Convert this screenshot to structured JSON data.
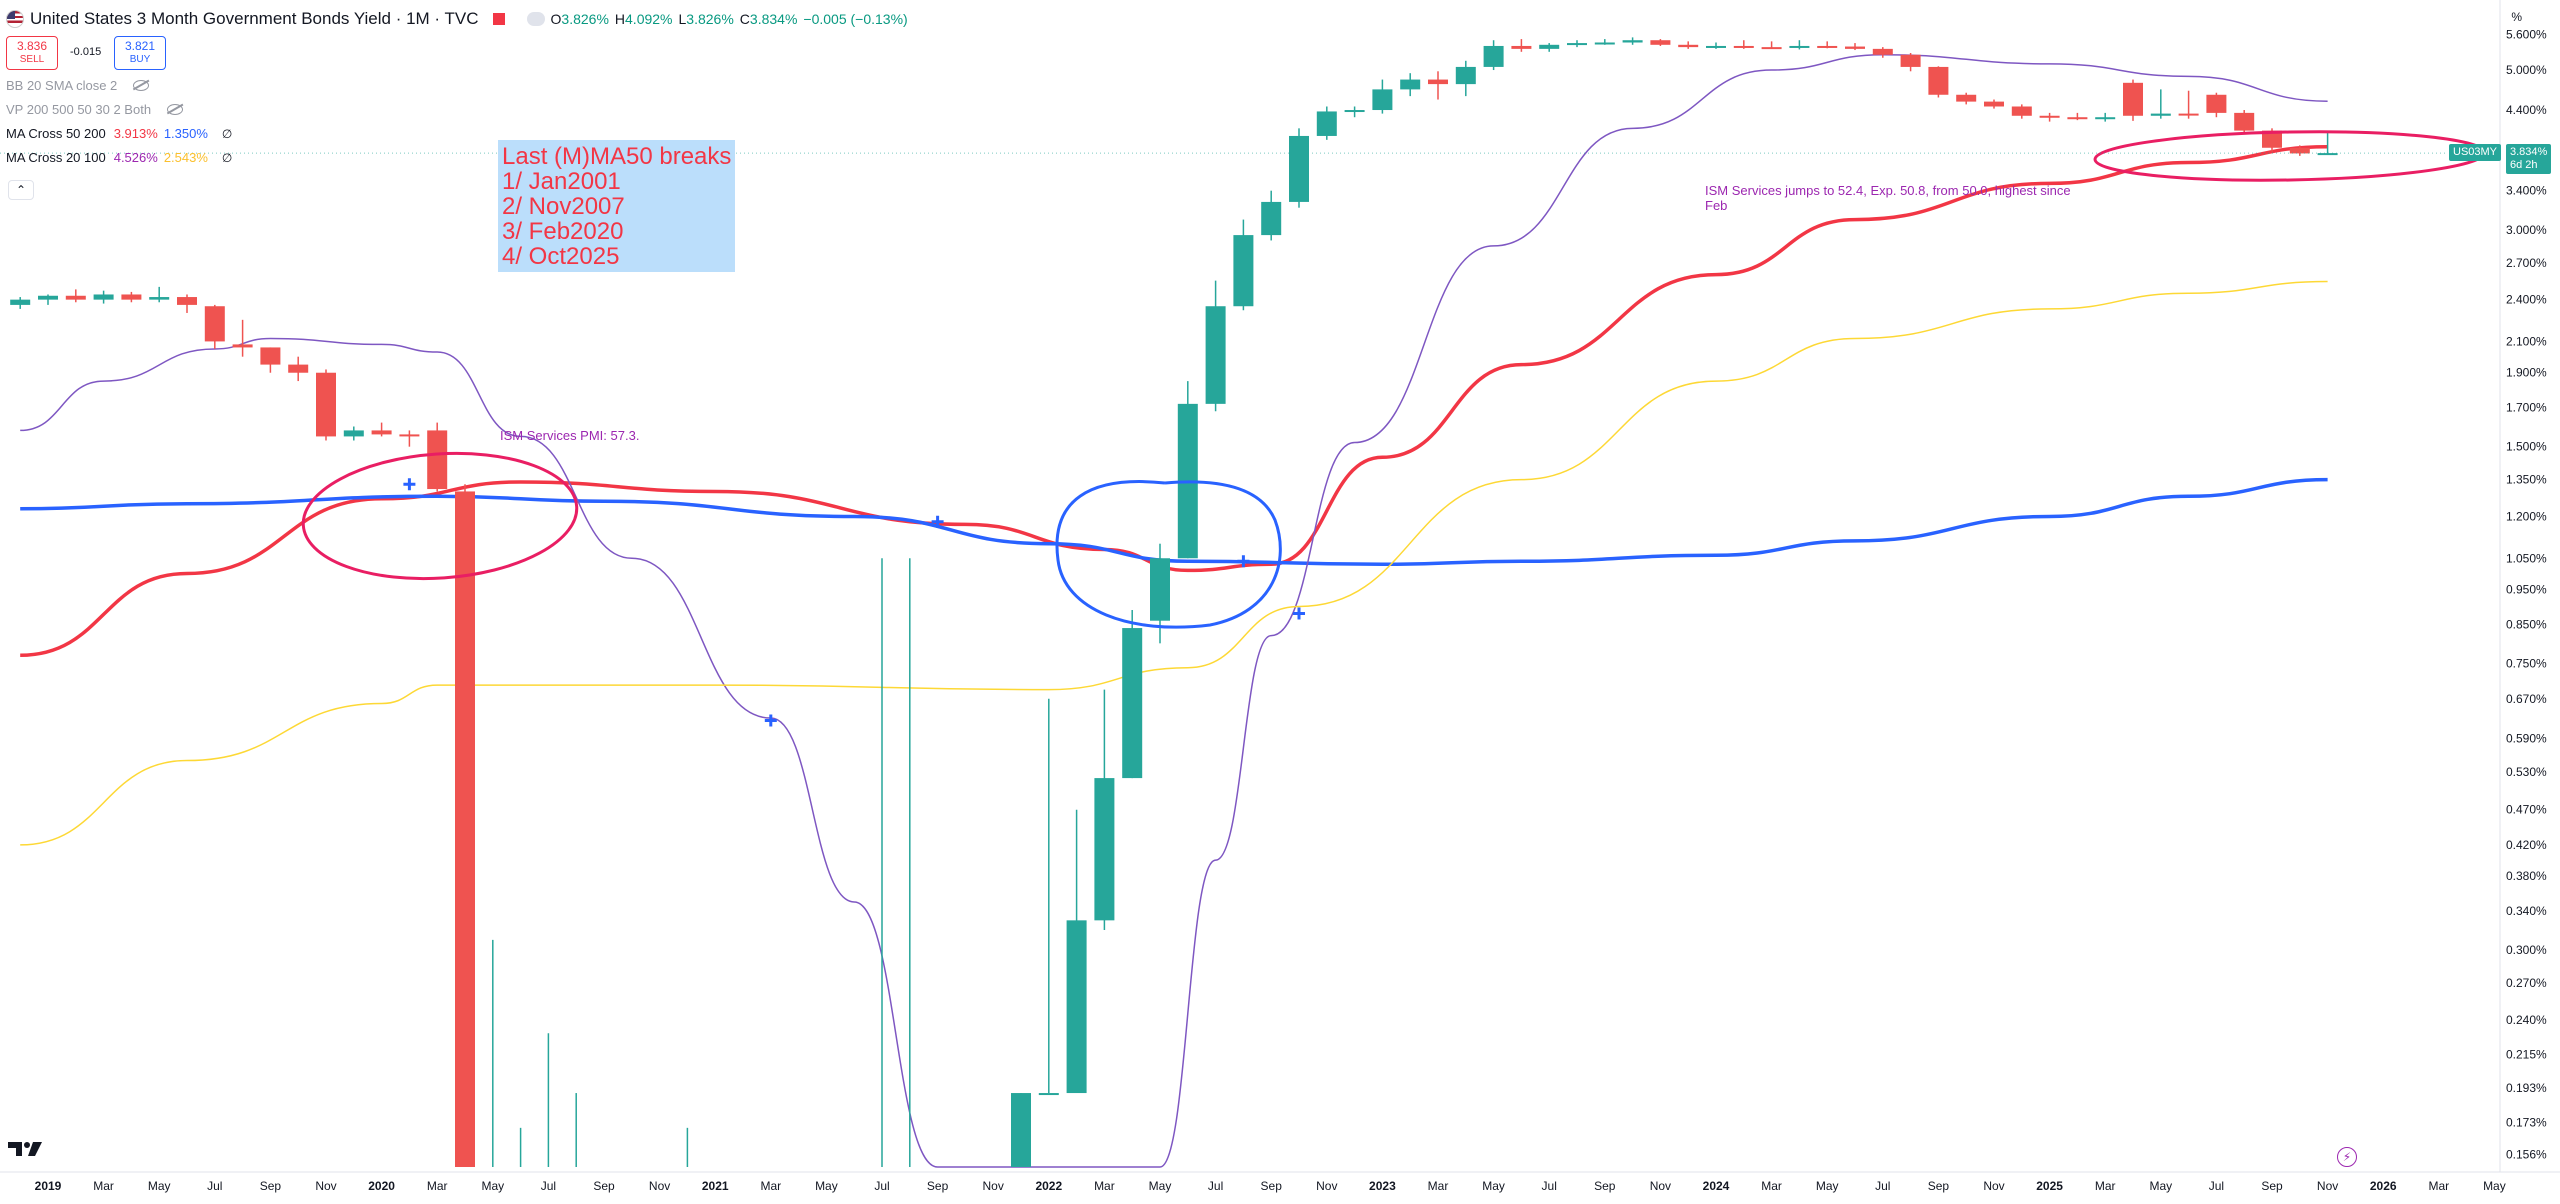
{
  "header": {
    "title": "United States 3 Month Government Bonds Yield · 1M · TVC",
    "ohlc": [
      {
        "k": "O",
        "v": "3.826%"
      },
      {
        "k": "H",
        "v": "4.092%"
      },
      {
        "k": "L",
        "v": "3.826%"
      },
      {
        "k": "C",
        "v": "3.834%"
      },
      {
        "k": "",
        "v": "−0.005 (−0.13%)"
      }
    ]
  },
  "trade": {
    "sell_price": "3.836",
    "sell_label": "SELL",
    "spread": "-0.015",
    "buy_price": "3.821",
    "buy_label": "BUY"
  },
  "indicators": [
    {
      "name": "BB 20 SMA close 2",
      "dim": true,
      "values": [],
      "hidden": true
    },
    {
      "name": "VP 200 500 50 30 2 Both",
      "dim": true,
      "values": [],
      "hidden": true
    },
    {
      "name": "MA Cross 50 200",
      "dim": false,
      "values": [
        {
          "v": "3.913%",
          "color": "#f23645"
        },
        {
          "v": "1.350%",
          "color": "#2962ff"
        }
      ],
      "null": "∅"
    },
    {
      "name": "MA Cross 20 100",
      "dim": false,
      "values": [
        {
          "v": "4.526%",
          "color": "#9c27b0"
        },
        {
          "v": "2.543%",
          "color": "#fbc02d"
        }
      ],
      "null": "∅"
    }
  ],
  "collapse_label": "⌃",
  "note": {
    "lines": [
      "Last (M)MA50 breaks",
      "1/ Jan2001",
      "2/ Nov2007",
      "3/ Feb2020",
      "4/ Oct2025"
    ]
  },
  "annotations": {
    "ism_2020": "ISM Services PMI: 57.3.",
    "ism_2025_line1": "ISM Services jumps to 52.4, Exp. 50.8, from 50.0, highest since",
    "ism_2025_line2": "Feb"
  },
  "axis_unit": "%",
  "symbol_tag": "US03MY",
  "last_price": "3.834%",
  "countdown": "6d 2h",
  "colors": {
    "up": "#26a69a",
    "down": "#ef5350",
    "ma50": "#f23645",
    "ma200": "#2962ff",
    "ma20": "#7e57c2",
    "ma100": "#fdd835",
    "markup_red": "#e91e63",
    "markup_blue": "#2962ff"
  },
  "chart_data": {
    "type": "candlestick",
    "title": "United States 3 Month Government Bonds Yield · 1M · TVC",
    "y_scale": "log",
    "ylim": [
      0.15,
      6.0
    ],
    "y_ticks": [
      "0.156%",
      "0.173%",
      "0.193%",
      "0.215%",
      "0.240%",
      "0.270%",
      "0.300%",
      "0.340%",
      "0.380%",
      "0.420%",
      "0.470%",
      "0.530%",
      "0.590%",
      "0.670%",
      "0.750%",
      "0.850%",
      "0.950%",
      "1.050%",
      "1.200%",
      "1.350%",
      "1.500%",
      "1.700%",
      "1.900%",
      "2.100%",
      "2.400%",
      "2.700%",
      "3.000%",
      "3.400%",
      "3.800%",
      "4.400%",
      "5.000%",
      "5.600%"
    ],
    "x_ticks": [
      "2019",
      "Mar",
      "May",
      "Jul",
      "Sep",
      "Nov",
      "2020",
      "Mar",
      "May",
      "Jul",
      "Sep",
      "Nov",
      "2021",
      "Mar",
      "May",
      "Jul",
      "Sep",
      "Nov",
      "2022",
      "Mar",
      "May",
      "Jul",
      "Sep",
      "Nov",
      "2023",
      "Mar",
      "May",
      "Jul",
      "Sep",
      "Nov",
      "2024",
      "Mar",
      "May",
      "Jul",
      "Sep",
      "Nov",
      "2025",
      "Mar",
      "May",
      "Jul",
      "Sep",
      "Nov",
      "2026",
      "Mar",
      "May"
    ],
    "candles": [
      {
        "t": "2018-12",
        "o": 2.36,
        "h": 2.42,
        "l": 2.33,
        "c": 2.4
      },
      {
        "t": "2019-01",
        "o": 2.4,
        "h": 2.44,
        "l": 2.36,
        "c": 2.43
      },
      {
        "t": "2019-02",
        "o": 2.43,
        "h": 2.48,
        "l": 2.38,
        "c": 2.4
      },
      {
        "t": "2019-03",
        "o": 2.4,
        "h": 2.47,
        "l": 2.37,
        "c": 2.44
      },
      {
        "t": "2019-04",
        "o": 2.44,
        "h": 2.46,
        "l": 2.38,
        "c": 2.4
      },
      {
        "t": "2019-05",
        "o": 2.4,
        "h": 2.5,
        "l": 2.38,
        "c": 2.42
      },
      {
        "t": "2019-06",
        "o": 2.42,
        "h": 2.44,
        "l": 2.3,
        "c": 2.36
      },
      {
        "t": "2019-07",
        "o": 2.35,
        "h": 2.36,
        "l": 2.05,
        "c": 2.1
      },
      {
        "t": "2019-08",
        "o": 2.08,
        "h": 2.25,
        "l": 2.0,
        "c": 2.06
      },
      {
        "t": "2019-09",
        "o": 2.06,
        "h": 2.06,
        "l": 1.9,
        "c": 1.95
      },
      {
        "t": "2019-10",
        "o": 1.95,
        "h": 2.0,
        "l": 1.85,
        "c": 1.9
      },
      {
        "t": "2019-11",
        "o": 1.9,
        "h": 1.92,
        "l": 1.53,
        "c": 1.55
      },
      {
        "t": "2019-12",
        "o": 1.55,
        "h": 1.6,
        "l": 1.53,
        "c": 1.58
      },
      {
        "t": "2020-01",
        "o": 1.58,
        "h": 1.62,
        "l": 1.55,
        "c": 1.56
      },
      {
        "t": "2020-02",
        "o": 1.56,
        "h": 1.58,
        "l": 1.5,
        "c": 1.55
      },
      {
        "t": "2020-03",
        "o": 1.58,
        "h": 1.62,
        "l": 1.3,
        "c": 1.31
      },
      {
        "t": "2020-04",
        "o": 1.3,
        "h": 1.33,
        "l": 0.15,
        "c": 0.15
      },
      {
        "t": "2020-05",
        "o": 0.15,
        "h": 0.31,
        "l": 0.15,
        "c": 0.15
      },
      {
        "t": "2020-06",
        "o": 0.15,
        "h": 0.17,
        "l": 0.15,
        "c": 0.15
      },
      {
        "t": "2020-07",
        "o": 0.15,
        "h": 0.23,
        "l": 0.15,
        "c": 0.15
      },
      {
        "t": "2020-08",
        "o": 0.15,
        "h": 0.19,
        "l": 0.15,
        "c": 0.15
      },
      {
        "t": "2020-12",
        "o": 0.15,
        "h": 0.17,
        "l": 0.15,
        "c": 0.15
      },
      {
        "t": "2021-07",
        "o": 0.15,
        "h": 1.05,
        "l": 0.15,
        "c": 0.15
      },
      {
        "t": "2021-08",
        "o": 0.15,
        "h": 1.05,
        "l": 0.15,
        "c": 0.15
      },
      {
        "t": "2021-12",
        "o": 0.15,
        "h": 0.19,
        "l": 0.15,
        "c": 0.19
      },
      {
        "t": "2022-01",
        "o": 0.19,
        "h": 0.67,
        "l": 0.19,
        "c": 0.19
      },
      {
        "t": "2022-02",
        "o": 0.19,
        "h": 0.47,
        "l": 0.19,
        "c": 0.33
      },
      {
        "t": "2022-03",
        "o": 0.33,
        "h": 0.69,
        "l": 0.32,
        "c": 0.52
      },
      {
        "t": "2022-04",
        "o": 0.52,
        "h": 0.89,
        "l": 0.52,
        "c": 0.84
      },
      {
        "t": "2022-05",
        "o": 0.86,
        "h": 1.1,
        "l": 0.8,
        "c": 1.05
      },
      {
        "t": "2022-06",
        "o": 1.05,
        "h": 1.85,
        "l": 1.05,
        "c": 1.72
      },
      {
        "t": "2022-07",
        "o": 1.72,
        "h": 2.55,
        "l": 1.68,
        "c": 2.35
      },
      {
        "t": "2022-08",
        "o": 2.35,
        "h": 3.1,
        "l": 2.32,
        "c": 2.95
      },
      {
        "t": "2022-09",
        "o": 2.95,
        "h": 3.4,
        "l": 2.9,
        "c": 3.28
      },
      {
        "t": "2022-10",
        "o": 3.28,
        "h": 4.15,
        "l": 3.22,
        "c": 4.05
      },
      {
        "t": "2022-11",
        "o": 4.05,
        "h": 4.45,
        "l": 4.0,
        "c": 4.38
      },
      {
        "t": "2022-12",
        "o": 4.38,
        "h": 4.45,
        "l": 4.3,
        "c": 4.4
      },
      {
        "t": "2023-01",
        "o": 4.4,
        "h": 4.85,
        "l": 4.35,
        "c": 4.7
      },
      {
        "t": "2023-02",
        "o": 4.7,
        "h": 4.95,
        "l": 4.6,
        "c": 4.85
      },
      {
        "t": "2023-03",
        "o": 4.85,
        "h": 4.98,
        "l": 4.55,
        "c": 4.78
      },
      {
        "t": "2023-04",
        "o": 4.78,
        "h": 5.15,
        "l": 4.6,
        "c": 5.05
      },
      {
        "t": "2023-05",
        "o": 5.05,
        "h": 5.5,
        "l": 5.0,
        "c": 5.4
      },
      {
        "t": "2023-06",
        "o": 5.4,
        "h": 5.52,
        "l": 5.3,
        "c": 5.35
      },
      {
        "t": "2023-07",
        "o": 5.35,
        "h": 5.45,
        "l": 5.3,
        "c": 5.42
      },
      {
        "t": "2023-08",
        "o": 5.42,
        "h": 5.5,
        "l": 5.38,
        "c": 5.45
      },
      {
        "t": "2023-09",
        "o": 5.45,
        "h": 5.52,
        "l": 5.42,
        "c": 5.46
      },
      {
        "t": "2023-10",
        "o": 5.46,
        "h": 5.55,
        "l": 5.42,
        "c": 5.5
      },
      {
        "t": "2023-11",
        "o": 5.5,
        "h": 5.52,
        "l": 5.4,
        "c": 5.42
      },
      {
        "t": "2023-12",
        "o": 5.42,
        "h": 5.48,
        "l": 5.35,
        "c": 5.38
      },
      {
        "t": "2024-01",
        "o": 5.38,
        "h": 5.46,
        "l": 5.35,
        "c": 5.4
      },
      {
        "t": "2024-02",
        "o": 5.4,
        "h": 5.5,
        "l": 5.35,
        "c": 5.38
      },
      {
        "t": "2024-03",
        "o": 5.38,
        "h": 5.48,
        "l": 5.35,
        "c": 5.37
      },
      {
        "t": "2024-04",
        "o": 5.37,
        "h": 5.5,
        "l": 5.34,
        "c": 5.4
      },
      {
        "t": "2024-05",
        "o": 5.4,
        "h": 5.48,
        "l": 5.36,
        "c": 5.39
      },
      {
        "t": "2024-06",
        "o": 5.39,
        "h": 5.45,
        "l": 5.33,
        "c": 5.35
      },
      {
        "t": "2024-07",
        "o": 5.35,
        "h": 5.38,
        "l": 5.2,
        "c": 5.25
      },
      {
        "t": "2024-08",
        "o": 5.25,
        "h": 5.28,
        "l": 4.98,
        "c": 5.05
      },
      {
        "t": "2024-09",
        "o": 5.05,
        "h": 5.06,
        "l": 4.58,
        "c": 4.62
      },
      {
        "t": "2024-10",
        "o": 4.62,
        "h": 4.65,
        "l": 4.48,
        "c": 4.52
      },
      {
        "t": "2024-11",
        "o": 4.52,
        "h": 4.55,
        "l": 4.42,
        "c": 4.45
      },
      {
        "t": "2024-12",
        "o": 4.45,
        "h": 4.48,
        "l": 4.28,
        "c": 4.32
      },
      {
        "t": "2025-01",
        "o": 4.32,
        "h": 4.36,
        "l": 4.24,
        "c": 4.3
      },
      {
        "t": "2025-02",
        "o": 4.3,
        "h": 4.36,
        "l": 4.26,
        "c": 4.29
      },
      {
        "t": "2025-03",
        "o": 4.29,
        "h": 4.36,
        "l": 4.24,
        "c": 4.3
      },
      {
        "t": "2025-04",
        "o": 4.8,
        "h": 4.85,
        "l": 4.25,
        "c": 4.32
      },
      {
        "t": "2025-05",
        "o": 4.32,
        "h": 4.7,
        "l": 4.28,
        "c": 4.35
      },
      {
        "t": "2025-06",
        "o": 4.35,
        "h": 4.68,
        "l": 4.28,
        "c": 4.33
      },
      {
        "t": "2025-07",
        "o": 4.62,
        "h": 4.65,
        "l": 4.3,
        "c": 4.36
      },
      {
        "t": "2025-08",
        "o": 4.36,
        "h": 4.4,
        "l": 4.08,
        "c": 4.12
      },
      {
        "t": "2025-09",
        "o": 4.12,
        "h": 4.15,
        "l": 3.85,
        "c": 3.9
      },
      {
        "t": "2025-10",
        "o": 3.9,
        "h": 3.93,
        "l": 3.8,
        "c": 3.83
      },
      {
        "t": "2025-11",
        "o": 3.826,
        "h": 4.092,
        "l": 3.826,
        "c": 3.834
      }
    ],
    "series": [
      {
        "name": "MA Cross 50 200 (50)",
        "color": "#f23645",
        "points": [
          [
            "2018-12",
            0.77
          ],
          [
            "2019-06",
            1.0
          ],
          [
            "2020-01",
            1.27
          ],
          [
            "2020-06",
            1.34
          ],
          [
            "2021-01",
            1.3
          ],
          [
            "2021-10",
            1.17
          ],
          [
            "2022-03",
            1.08
          ],
          [
            "2022-06",
            1.01
          ],
          [
            "2022-09",
            1.03
          ],
          [
            "2023-01",
            1.45
          ],
          [
            "2023-06",
            1.95
          ],
          [
            "2024-01",
            2.6
          ],
          [
            "2024-06",
            3.1
          ],
          [
            "2025-01",
            3.48
          ],
          [
            "2025-06",
            3.72
          ],
          [
            "2025-11",
            3.913
          ]
        ]
      },
      {
        "name": "MA Cross 50 200 (200)",
        "color": "#2962ff",
        "points": [
          [
            "2018-12",
            1.23
          ],
          [
            "2019-06",
            1.25
          ],
          [
            "2020-03",
            1.28
          ],
          [
            "2020-09",
            1.26
          ],
          [
            "2021-06",
            1.2
          ],
          [
            "2022-01",
            1.1
          ],
          [
            "2022-06",
            1.04
          ],
          [
            "2023-01",
            1.03
          ],
          [
            "2023-06",
            1.04
          ],
          [
            "2024-01",
            1.06
          ],
          [
            "2024-06",
            1.11
          ],
          [
            "2025-01",
            1.2
          ],
          [
            "2025-06",
            1.28
          ],
          [
            "2025-11",
            1.35
          ]
        ]
      },
      {
        "name": "MA Cross 20 100 (20)",
        "color": "#7e57c2",
        "points": [
          [
            "2018-12",
            1.58
          ],
          [
            "2019-03",
            1.85
          ],
          [
            "2019-07",
            2.05
          ],
          [
            "2019-09",
            2.12
          ],
          [
            "2020-01",
            2.08
          ],
          [
            "2020-03",
            2.03
          ],
          [
            "2020-06",
            1.55
          ],
          [
            "2020-10",
            1.05
          ],
          [
            "2021-03",
            0.63
          ],
          [
            "2021-06",
            0.35
          ],
          [
            "2021-09",
            0.14
          ],
          [
            "2022-05",
            0.14
          ],
          [
            "2022-07",
            0.4
          ],
          [
            "2022-09",
            0.82
          ],
          [
            "2022-12",
            1.52
          ],
          [
            "2023-05",
            2.85
          ],
          [
            "2023-10",
            4.15
          ],
          [
            "2024-03",
            5.0
          ],
          [
            "2024-07",
            5.25
          ],
          [
            "2025-01",
            5.1
          ],
          [
            "2025-06",
            4.9
          ],
          [
            "2025-11",
            4.526
          ]
        ]
      },
      {
        "name": "MA Cross 20 100 (100)",
        "color": "#fdd835",
        "points": [
          [
            "2018-12",
            0.42
          ],
          [
            "2019-06",
            0.55
          ],
          [
            "2020-01",
            0.66
          ],
          [
            "2020-03",
            0.7
          ],
          [
            "2021-01",
            0.7
          ],
          [
            "2022-01",
            0.69
          ],
          [
            "2022-06",
            0.74
          ],
          [
            "2022-10",
            0.9
          ],
          [
            "2023-06",
            1.35
          ],
          [
            "2024-01",
            1.85
          ],
          [
            "2024-06",
            2.12
          ],
          [
            "2025-01",
            2.33
          ],
          [
            "2025-06",
            2.45
          ],
          [
            "2025-11",
            2.543
          ]
        ]
      }
    ],
    "cross_markers": [
      [
        "2020-02",
        1.33
      ],
      [
        "2021-03",
        0.625
      ],
      [
        "2021-09",
        1.18
      ],
      [
        "2022-08",
        1.04
      ],
      [
        "2022-10",
        0.88
      ]
    ]
  }
}
